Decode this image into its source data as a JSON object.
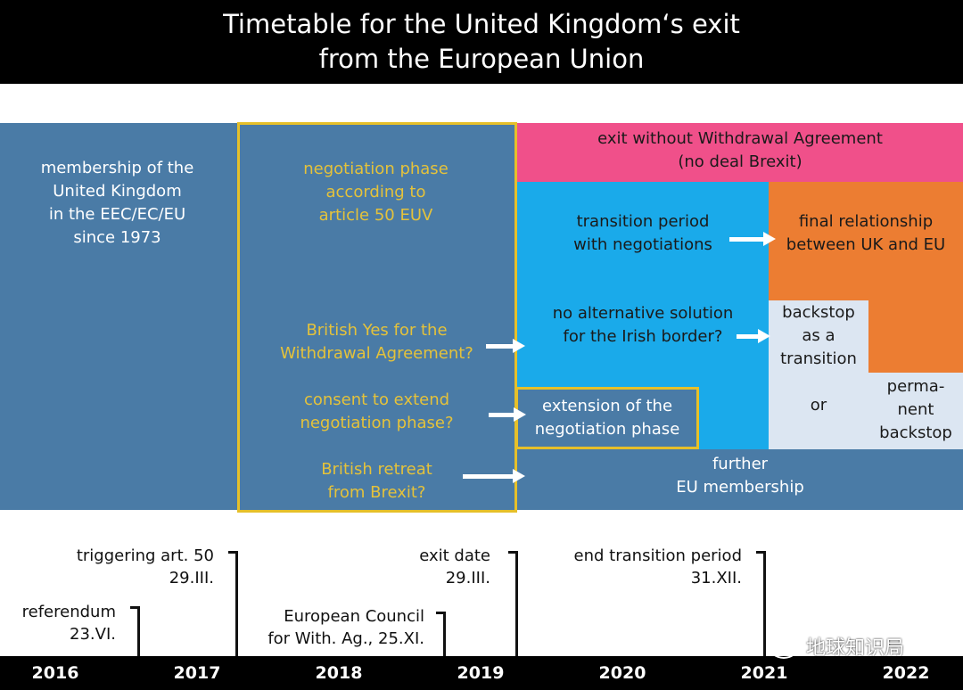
{
  "title": {
    "line1": "Timetable for the United Kingdom‘s exit",
    "line2": "from the European Union"
  },
  "membership": {
    "lines": [
      "membership of the",
      "United Kingdom",
      "in the EEC/EC/EU",
      "since 1973"
    ]
  },
  "negotiation": {
    "phase_lines": [
      "negotiation phase",
      "according to",
      "article 50 EUV"
    ],
    "yes_lines": [
      "British Yes for the",
      "Withdrawal Agreement?"
    ],
    "consent_lines": [
      "consent to extend",
      "negotiation phase?"
    ],
    "retreat_lines": [
      "British retreat",
      "from Brexit?"
    ]
  },
  "no_deal": {
    "lines": [
      "exit without Withdrawal Agreement",
      "(no deal Brexit)"
    ]
  },
  "transition": {
    "lines": [
      "transition period",
      "with negotiations"
    ]
  },
  "final": {
    "lines": [
      "final relationship",
      "between UK and EU"
    ]
  },
  "irish": {
    "lines": [
      "no alternative solution",
      "for the Irish border?"
    ]
  },
  "backstop_transition": {
    "lines": [
      "backstop",
      "as a",
      "transition"
    ]
  },
  "or_label": "or",
  "backstop_permanent": {
    "lines": [
      "perma-",
      "nent",
      "backstop"
    ]
  },
  "extension": {
    "lines": [
      "extension of the",
      "negotiation phase"
    ]
  },
  "further": {
    "lines": [
      "further",
      "EU membership"
    ]
  },
  "annotations": {
    "triggering": [
      "triggering art. 50",
      "29.III."
    ],
    "referendum": [
      "referendum",
      "23.VI."
    ],
    "exit_date": [
      "exit date",
      "29.III."
    ],
    "council": [
      "European Council",
      "for With. Ag., 25.XI."
    ],
    "end_transition": [
      "end transition period",
      "31.XII."
    ]
  },
  "years": [
    "2016",
    "2017",
    "2018",
    "2019",
    "2020",
    "2021",
    "2022"
  ],
  "watermark": "地球知识局",
  "colors": {
    "steel_blue": "#4a7ba6",
    "negotiation_outline": "#e6c02a",
    "no_deal_pink": "#f0508a",
    "transition_cyan": "#1aaaea",
    "final_orange": "#ec7d32",
    "backstop_light": "#dce6f2"
  }
}
